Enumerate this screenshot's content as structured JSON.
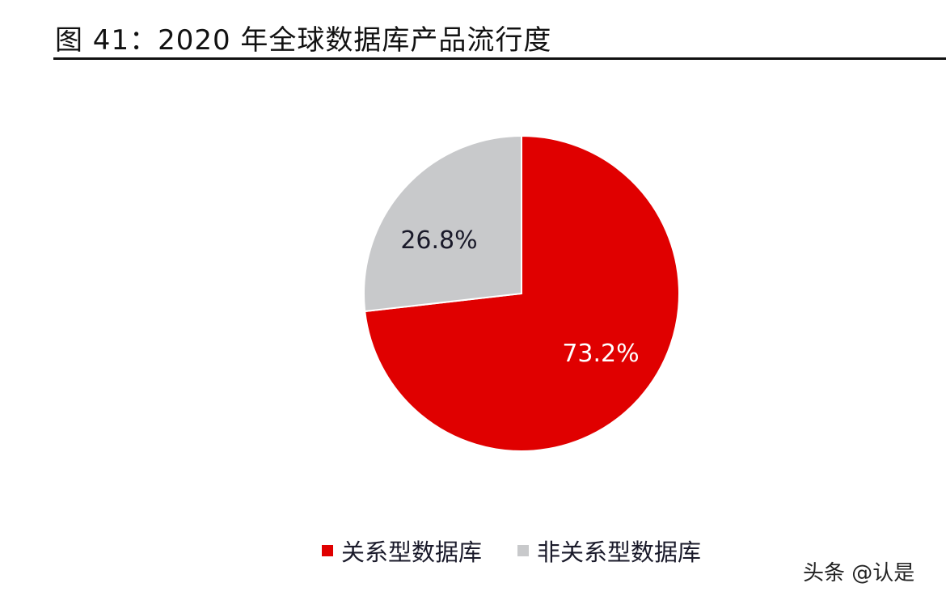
{
  "header": {
    "title": "图 41：2020 年全球数据库产品流行度"
  },
  "chart_data": {
    "type": "pie",
    "title": "2020 年全球数据库产品流行度",
    "categories": [
      "关系型数据库",
      "非关系型数据库"
    ],
    "values": [
      73.2,
      26.8
    ],
    "labels": [
      "73.2%",
      "26.8%"
    ],
    "colors": [
      "#e00000",
      "#c8c9cb"
    ],
    "start_angle": "12 o'clock, clockwise",
    "legend_position": "bottom"
  },
  "legend": {
    "items": [
      {
        "label": "关系型数据库",
        "color": "#e00000"
      },
      {
        "label": "非关系型数据库",
        "color": "#c8c9cb"
      }
    ]
  },
  "watermark": {
    "text": "头条 @认是"
  }
}
